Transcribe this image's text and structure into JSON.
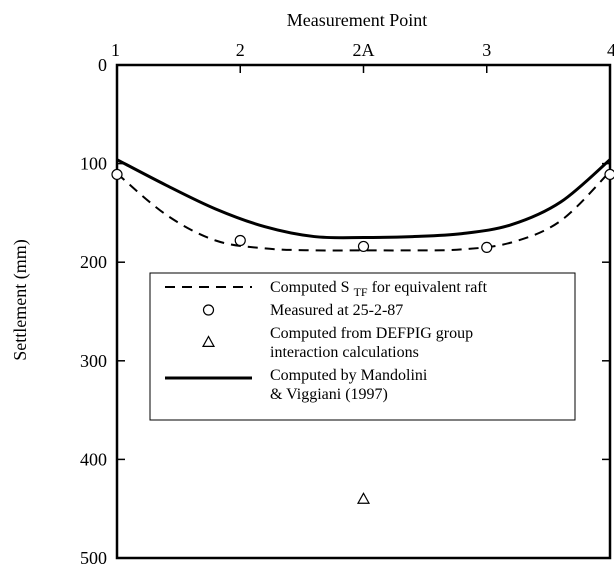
{
  "chart_data": {
    "type": "line",
    "title": "",
    "xlabel": "Measurement Point",
    "ylabel": "Settlement (mm)",
    "x_axis_position": "top",
    "y_axis_inverted": true,
    "ylim": [
      0,
      500
    ],
    "yticks": [
      "0",
      "100",
      "200",
      "300",
      "400",
      "500"
    ],
    "xticks": [
      {
        "label": "1",
        "x": 0
      },
      {
        "label": "2",
        "x": 1
      },
      {
        "label": "2A",
        "x": 2
      },
      {
        "label": "3",
        "x": 3
      },
      {
        "label": "4",
        "x": 4
      }
    ],
    "xlim": [
      0,
      4
    ],
    "grid": false,
    "legend_position": "center",
    "series": [
      {
        "name": "Computed S TF for equivalent raft",
        "kind": "dashed-line",
        "points": [
          [
            0,
            110
          ],
          [
            0.4,
            152
          ],
          [
            0.8,
            178
          ],
          [
            1.2,
            186
          ],
          [
            1.6,
            188
          ],
          [
            2.0,
            188
          ],
          [
            2.4,
            188
          ],
          [
            2.8,
            187
          ],
          [
            3.2,
            180
          ],
          [
            3.6,
            158
          ],
          [
            4.0,
            108
          ]
        ]
      },
      {
        "name": "Measured at 25-2-87",
        "kind": "circle-marker",
        "points": [
          [
            0,
            111
          ],
          [
            1,
            178
          ],
          [
            2,
            184
          ],
          [
            3,
            185
          ],
          [
            4,
            111
          ]
        ]
      },
      {
        "name": "Computed from DEFPIG group interaction calculations",
        "kind": "triangle-marker",
        "points": [
          [
            2,
            440
          ]
        ]
      },
      {
        "name": "Computed by Mandolini & Viggiani (1997)",
        "kind": "solid-line",
        "points": [
          [
            0,
            96
          ],
          [
            0.4,
            122
          ],
          [
            0.8,
            146
          ],
          [
            1.2,
            164
          ],
          [
            1.6,
            174
          ],
          [
            2.0,
            175
          ],
          [
            2.4,
            174
          ],
          [
            2.8,
            171
          ],
          [
            3.2,
            162
          ],
          [
            3.6,
            139
          ],
          [
            4.0,
            96
          ]
        ]
      }
    ],
    "legend": {
      "entries": [
        {
          "kind": "dashed-line",
          "lines": [
            {
              "main": "Computed S",
              "sub": "TF",
              "rest": " for equivalent raft"
            }
          ]
        },
        {
          "kind": "circle-marker",
          "lines": [
            {
              "main": "Measured at 25-2-87"
            }
          ]
        },
        {
          "kind": "triangle-marker",
          "lines": [
            {
              "main": "Computed from DEFPIG group"
            },
            {
              "main": "interaction calculations"
            }
          ]
        },
        {
          "kind": "solid-line",
          "lines": [
            {
              "main": "Computed by Mandolini"
            },
            {
              "main": "& Viggiani (1997)"
            }
          ]
        }
      ]
    }
  }
}
